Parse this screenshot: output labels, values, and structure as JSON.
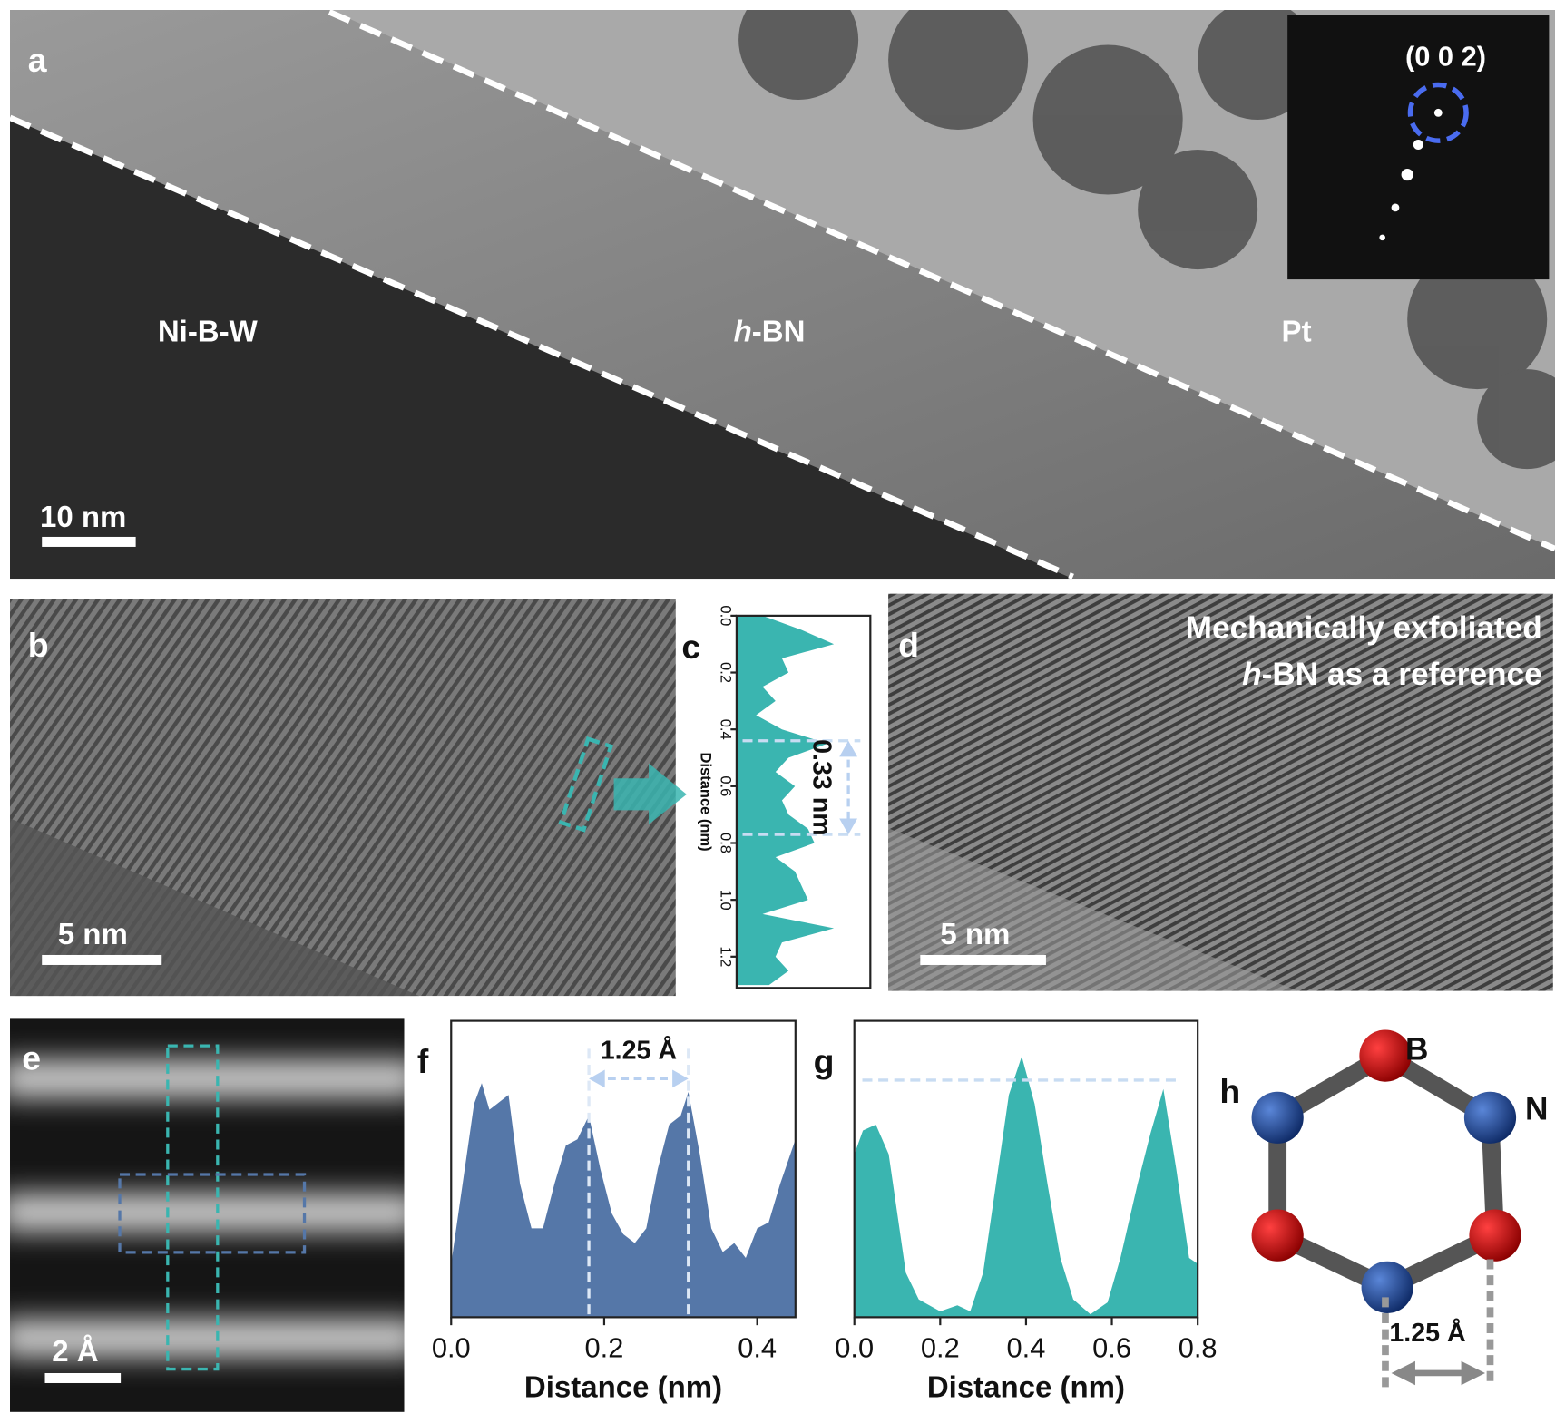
{
  "panels": {
    "a": {
      "label": "a",
      "scale_bar": "10 nm",
      "regions": {
        "left": "Ni-B-W",
        "middle": {
          "italic": "h",
          "text": "-BN"
        },
        "right": "Pt"
      },
      "inset_spot": "(0 0 2)"
    },
    "b": {
      "label": "b",
      "scale_bar": "5 nm"
    },
    "c": {
      "label": "c",
      "ylabel": "Distance (nm)",
      "annotation": "0.33 nm",
      "ylim": [
        0,
        1.31
      ],
      "yticks": [
        {
          "value": 0,
          "label": "0.0"
        },
        0.2,
        0.4,
        0.6,
        0.8,
        {
          "value": 1,
          "label": "1.0"
        },
        1.2
      ],
      "markers": [
        0.44,
        0.77
      ],
      "profile": {
        "x": [
          0,
          0.05,
          0.1,
          0.15,
          0.2,
          0.25,
          0.3,
          0.35,
          0.4,
          0.45,
          0.5,
          0.55,
          0.6,
          0.65,
          0.7,
          0.75,
          0.8,
          0.85,
          0.9,
          0.95,
          1.0,
          1.05,
          1.1,
          1.15,
          1.2,
          1.25,
          1.3
        ],
        "y": [
          0.2,
          0.5,
          0.75,
          0.35,
          0.4,
          0.2,
          0.3,
          0.15,
          0.35,
          0.7,
          0.4,
          0.3,
          0.45,
          0.35,
          0.4,
          0.55,
          0.6,
          0.3,
          0.45,
          0.5,
          0.55,
          0.2,
          0.75,
          0.35,
          0.3,
          0.4,
          0.25
        ]
      },
      "color": "#3ab5b0"
    },
    "d": {
      "label": "d",
      "caption": [
        "Mechanically exfoliated",
        {
          "italic": "h",
          "text": "-BN as a reference"
        }
      ],
      "scale_bar": "5 nm"
    },
    "e": {
      "label": "e",
      "scale_bar": "2 Å"
    },
    "f": {
      "label": "f",
      "xlabel": "Distance (nm)",
      "annotation": "1.25 Å",
      "xlim": [
        0,
        0.45
      ],
      "xticks": [
        {
          "value": 0,
          "label": "0.0"
        },
        0.2,
        0.4
      ],
      "markers": [
        0.18,
        0.31
      ],
      "profile": {
        "x": [
          0,
          0.015,
          0.03,
          0.04,
          0.05,
          0.06,
          0.075,
          0.09,
          0.105,
          0.12,
          0.135,
          0.15,
          0.165,
          0.18,
          0.195,
          0.21,
          0.225,
          0.24,
          0.255,
          0.27,
          0.285,
          0.3,
          0.31,
          0.325,
          0.34,
          0.355,
          0.37,
          0.385,
          0.4,
          0.415,
          0.43,
          0.45
        ],
        "y": [
          0.18,
          0.45,
          0.72,
          0.79,
          0.7,
          0.72,
          0.75,
          0.45,
          0.3,
          0.3,
          0.45,
          0.58,
          0.6,
          0.68,
          0.5,
          0.35,
          0.28,
          0.25,
          0.3,
          0.5,
          0.65,
          0.68,
          0.76,
          0.55,
          0.3,
          0.22,
          0.25,
          0.2,
          0.3,
          0.32,
          0.45,
          0.6
        ]
      },
      "color": "#5577a8"
    },
    "g": {
      "label": "g",
      "xlabel": "Distance (nm)",
      "xlim": [
        0,
        0.8
      ],
      "xticks": [
        {
          "value": 0,
          "label": "0.0"
        },
        0.2,
        0.4,
        0.6,
        0.8
      ],
      "reference_level": 0.8,
      "profile": {
        "x": [
          0,
          0.02,
          0.05,
          0.08,
          0.1,
          0.12,
          0.15,
          0.2,
          0.24,
          0.27,
          0.3,
          0.33,
          0.36,
          0.39,
          0.42,
          0.45,
          0.48,
          0.51,
          0.55,
          0.59,
          0.62,
          0.66,
          0.69,
          0.72,
          0.75,
          0.78,
          0.8
        ],
        "y": [
          0.55,
          0.63,
          0.65,
          0.55,
          0.35,
          0.15,
          0.06,
          0.02,
          0.04,
          0.02,
          0.15,
          0.45,
          0.75,
          0.88,
          0.72,
          0.45,
          0.2,
          0.06,
          0.01,
          0.05,
          0.2,
          0.45,
          0.62,
          0.77,
          0.5,
          0.2,
          0.18
        ]
      },
      "color": "#3ab5b0"
    },
    "h": {
      "label": "h",
      "atoms": [
        "B",
        "N"
      ],
      "bond_length": "1.25 Å"
    }
  }
}
